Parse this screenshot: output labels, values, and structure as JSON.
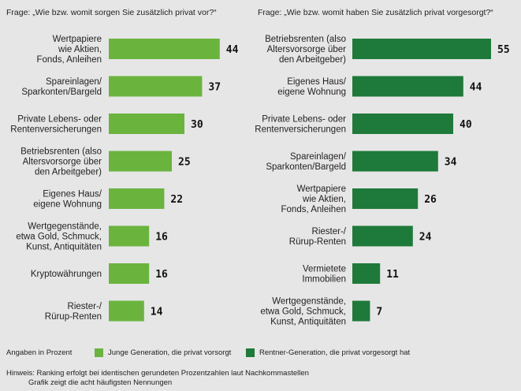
{
  "questions": {
    "left": "Frage: „Wie bzw. womit sorgen Sie zusätzlich privat vor?“",
    "right": "Frage: „Wie bzw. womit haben Sie zusätzlich privat vorgesorgt?“"
  },
  "legend": {
    "unit_label": "Angaben in Prozent",
    "young_label": "Junge Generation, die privat vorsorgt",
    "old_label": "Rentner-Generation, die privat vorgesorgt hat"
  },
  "colors": {
    "young": "#6ab43e",
    "old": "#1e7a3a"
  },
  "notes": {
    "line1": "Hinweis: Ranking erfolgt bei identischen gerundeten Prozentzahlen laut Nachkommastellen",
    "line2": "Grafik zeigt die acht häufigsten Nennungen"
  },
  "chart_data": [
    {
      "type": "bar",
      "orientation": "horizontal",
      "categories": [
        "Wertpapiere\nwie Aktien,\nFonds, Anleihen",
        "Spareinlagen/\nSparkonten/Bargeld",
        "Private Lebens- oder\nRentenversicherungen",
        "Betriebsrenten (also\nAltersvorsorge über\nden Arbeitgeber)",
        "Eigenes Haus/\neigene Wohnung",
        "Wertgegenstände,\netwa Gold, Schmuck,\nKunst, Antiquitäten",
        "Kryptowährungen",
        "Riester-/\nRürup-Renten"
      ],
      "values": [
        44,
        37,
        30,
        25,
        22,
        16,
        16,
        14
      ],
      "series_name": "Junge Generation, die privat vorsorgt"
    },
    {
      "type": "bar",
      "orientation": "horizontal",
      "categories": [
        "Betriebsrenten (also\nAltersvorsorge über\nden Arbeitgeber)",
        "Eigenes Haus/\neigene Wohnung",
        "Private Lebens- oder\nRentenversicherungen",
        "Spareinlagen/\nSparkonten/Bargeld",
        "Wertpapiere\nwie Aktien,\nFonds, Anleihen",
        "Riester-/\nRürup-Renten",
        "Vermietete\nImmobilien",
        "Wertgegenstände,\netwa Gold, Schmuck,\nKunst, Antiquitäten"
      ],
      "values": [
        55,
        44,
        40,
        34,
        26,
        24,
        11,
        7
      ],
      "series_name": "Rentner-Generation, die privat vorgesorgt hat"
    }
  ]
}
